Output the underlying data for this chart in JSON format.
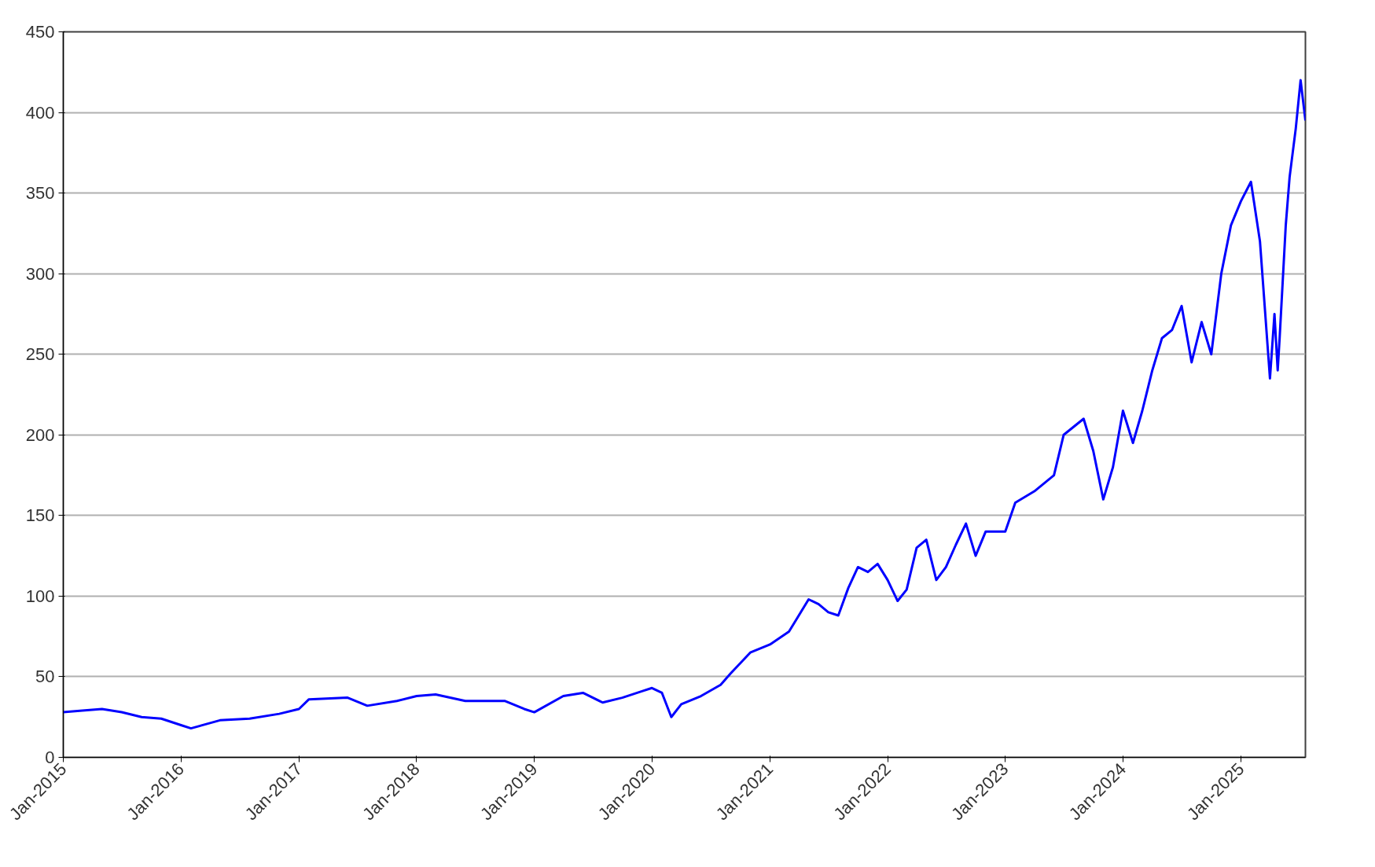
{
  "chart_data": {
    "type": "line",
    "x": [
      "2015-01-01",
      "2015-03",
      "2015-05",
      "2015-07",
      "2015-09",
      "2015-11",
      "2016-01",
      "2016-02",
      "2016-05",
      "2016-08",
      "2016-11",
      "2017-01",
      "2017-02",
      "2017-06",
      "2017-08",
      "2017-11",
      "2018-01",
      "2018-03",
      "2018-06",
      "2018-10",
      "2018-12",
      "2019-01",
      "2019-04",
      "2019-06",
      "2019-08",
      "2019-10",
      "2019-12",
      "2020-01",
      "2020-02",
      "2020-03",
      "2020-04",
      "2020-06",
      "2020-08",
      "2020-09",
      "2020-11",
      "2021-01",
      "2021-03",
      "2021-05",
      "2021-06",
      "2021-07",
      "2021-08",
      "2021-09",
      "2021-10",
      "2021-11",
      "2021-12",
      "2022-01",
      "2022-02",
      "2022-03",
      "2022-04",
      "2022-05",
      "2022-06",
      "2022-07",
      "2022-08",
      "2022-09",
      "2022-10",
      "2022-11",
      "2023-01",
      "2023-02",
      "2023-04",
      "2023-06",
      "2023-07",
      "2023-08",
      "2023-09",
      "2023-10",
      "2023-11",
      "2023-12",
      "2024-01",
      "2024-02",
      "2024-03",
      "2024-04",
      "2024-05",
      "2024-06",
      "2024-07",
      "2024-08",
      "2024-09",
      "2024-10",
      "2024-11",
      "2024-12",
      "2025-01",
      "2025-02",
      "2025-03",
      "2025-04",
      "2025-04-15",
      "2025-04-25",
      "2025-05",
      "2025-05-20",
      "2025-06",
      "2025-06-20",
      "2025-07-05",
      "2025-07-20"
    ],
    "series": [
      {
        "color": "#0000ff",
        "values": [
          28,
          29,
          30,
          28,
          25,
          24,
          20,
          18,
          23,
          24,
          27,
          30,
          36,
          37,
          32,
          35,
          38,
          39,
          35,
          35,
          30,
          28,
          38,
          40,
          34,
          37,
          41,
          43,
          40,
          25,
          33,
          38,
          45,
          52,
          65,
          70,
          78,
          98,
          95,
          90,
          88,
          105,
          118,
          115,
          120,
          110,
          97,
          104,
          130,
          135,
          110,
          118,
          132,
          145,
          125,
          140,
          140,
          158,
          165,
          175,
          200,
          205,
          210,
          190,
          160,
          180,
          215,
          195,
          215,
          240,
          260,
          265,
          280,
          245,
          270,
          250,
          300,
          330,
          345,
          357,
          320,
          235,
          275,
          240,
          260,
          330,
          360,
          390,
          420,
          395
        ]
      }
    ],
    "xlim": [
      "2015-01-01",
      "2025-07-20"
    ],
    "xticks": [
      {
        "value": "2015-01-01",
        "label": "Jan-2015"
      },
      {
        "value": "2016-01-01",
        "label": "Jan-2016"
      },
      {
        "value": "2017-01-01",
        "label": "Jan-2017"
      },
      {
        "value": "2018-01-01",
        "label": "Jan-2018"
      },
      {
        "value": "2019-01-01",
        "label": "Jan-2019"
      },
      {
        "value": "2020-01-01",
        "label": "Jan-2020"
      },
      {
        "value": "2021-01-01",
        "label": "Jan-2021"
      },
      {
        "value": "2022-01-01",
        "label": "Jan-2022"
      },
      {
        "value": "2023-01-01",
        "label": "Jan-2023"
      },
      {
        "value": "2024-01-01",
        "label": "Jan-2024"
      },
      {
        "value": "2025-01-01",
        "label": "Jan-2025"
      }
    ],
    "ylim": [
      0,
      450
    ],
    "yticks": [
      0,
      50,
      100,
      150,
      200,
      250,
      300,
      350,
      400,
      450
    ],
    "grid": "y"
  }
}
